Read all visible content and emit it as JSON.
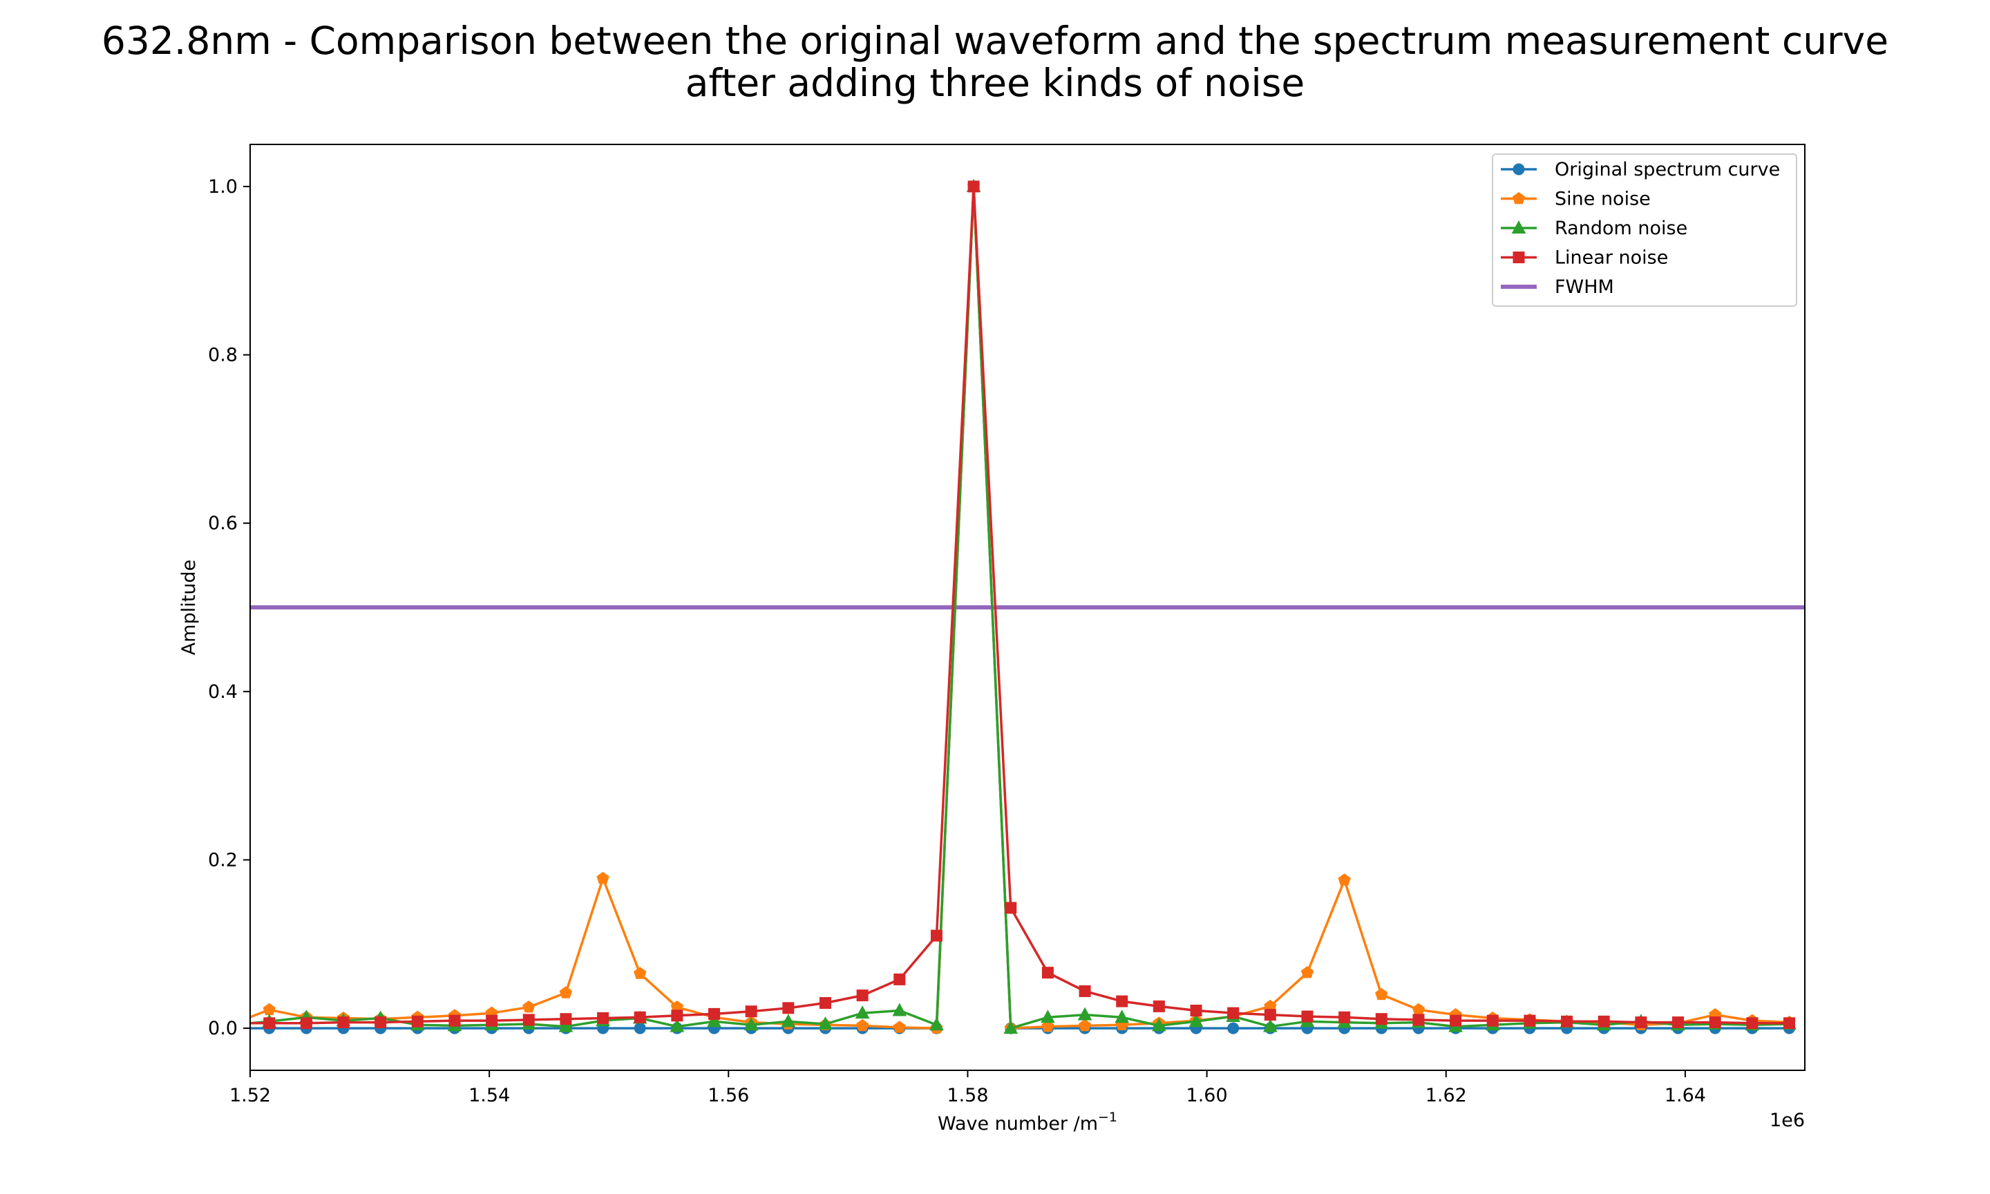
{
  "chart_data": {
    "type": "line",
    "title_lines": [
      "632.8nm - Comparison between the original waveform and the spectrum measurement curve",
      "after adding three kinds of noise"
    ],
    "xlabel": "Wave number /m",
    "xlabel_sup": "−1",
    "ylabel": "Amplitude",
    "x_offset_label": "1e6",
    "xlim": [
      1.52,
      1.65
    ],
    "ylim": [
      -0.05,
      1.05
    ],
    "x_ticks": [
      1.52,
      1.54,
      1.56,
      1.58,
      1.6,
      1.62,
      1.64
    ],
    "x_tick_labels": [
      "1.52",
      "1.54",
      "1.56",
      "1.58",
      "1.60",
      "1.62",
      "1.64"
    ],
    "y_ticks": [
      0.0,
      0.2,
      0.4,
      0.6,
      0.8,
      1.0
    ],
    "y_tick_labels": [
      "0.0",
      "0.2",
      "0.4",
      "0.6",
      "0.8",
      "1.0"
    ],
    "grid": false,
    "legend_position": "top-right",
    "x": [
      1.5185,
      1.5216,
      1.5247,
      1.5278,
      1.5309,
      1.534,
      1.5371,
      1.5402,
      1.5433,
      1.5464,
      1.5495,
      1.5526,
      1.5557,
      1.5588,
      1.5619,
      1.565,
      1.5681,
      1.5712,
      1.5743,
      1.5774,
      1.5805,
      1.5836,
      1.5867,
      1.5898,
      1.5929,
      1.596,
      1.5991,
      1.6022,
      1.6053,
      1.6084,
      1.6115,
      1.6146,
      1.6177,
      1.6208,
      1.6239,
      1.627,
      1.6301,
      1.6332,
      1.6363,
      1.6394,
      1.6425,
      1.6456,
      1.6487
    ],
    "series": [
      {
        "name": "Original spectrum curve",
        "color": "#1f77b4",
        "marker": "circle",
        "values": [
          0,
          0,
          0,
          0,
          0,
          0,
          0,
          0,
          0,
          0,
          0,
          0,
          0,
          0,
          0,
          0,
          0,
          0,
          0,
          0,
          1.0,
          0,
          0,
          0,
          0,
          0,
          0,
          0,
          0,
          0,
          0,
          0,
          0,
          0,
          0,
          0,
          0,
          0,
          0,
          0,
          0,
          0,
          0
        ]
      },
      {
        "name": "Sine noise",
        "color": "#ff7f0e",
        "marker": "pentagon",
        "values": [
          0.005,
          0.022,
          0.013,
          0.012,
          0.011,
          0.013,
          0.015,
          0.018,
          0.025,
          0.042,
          0.178,
          0.065,
          0.025,
          0.013,
          0.007,
          0.005,
          0.004,
          0.003,
          0.001,
          0,
          1.0,
          0,
          0.002,
          0.003,
          0.004,
          0.006,
          0.009,
          0.014,
          0.026,
          0.066,
          0.176,
          0.04,
          0.022,
          0.016,
          0.012,
          0.01,
          0.008,
          0.007,
          0.004,
          0.006,
          0.016,
          0.009,
          0.007
        ]
      },
      {
        "name": "Random noise",
        "color": "#2ca02c",
        "marker": "triangle",
        "values": [
          0.004,
          0.008,
          0.013,
          0.009,
          0.012,
          0.004,
          0.003,
          0.004,
          0.005,
          0.002,
          0.009,
          0.012,
          0.002,
          0.008,
          0.004,
          0.008,
          0.005,
          0.018,
          0.021,
          0.004,
          1.0,
          0,
          0.013,
          0.016,
          0.013,
          0.003,
          0.008,
          0.014,
          0.002,
          0.008,
          0.007,
          0.006,
          0.007,
          0.002,
          0.004,
          0.006,
          0.007,
          0.004,
          0.008,
          0.004,
          0.005,
          0.004,
          0.005
        ]
      },
      {
        "name": "Linear noise",
        "color": "#d62728",
        "marker": "square",
        "values": [
          0.006,
          0.006,
          0.006,
          0.007,
          0.007,
          0.008,
          0.009,
          0.009,
          0.01,
          0.011,
          0.012,
          0.013,
          0.015,
          0.017,
          0.02,
          0.024,
          0.03,
          0.039,
          0.058,
          0.11,
          1.0,
          0.143,
          0.066,
          0.044,
          0.032,
          0.026,
          0.021,
          0.018,
          0.016,
          0.014,
          0.013,
          0.011,
          0.01,
          0.009,
          0.009,
          0.009,
          0.008,
          0.008,
          0.007,
          0.007,
          0.007,
          0.006,
          0.006
        ]
      }
    ],
    "fwhm": {
      "name": "FWHM",
      "color": "#9467bd",
      "value": 0.5
    }
  }
}
